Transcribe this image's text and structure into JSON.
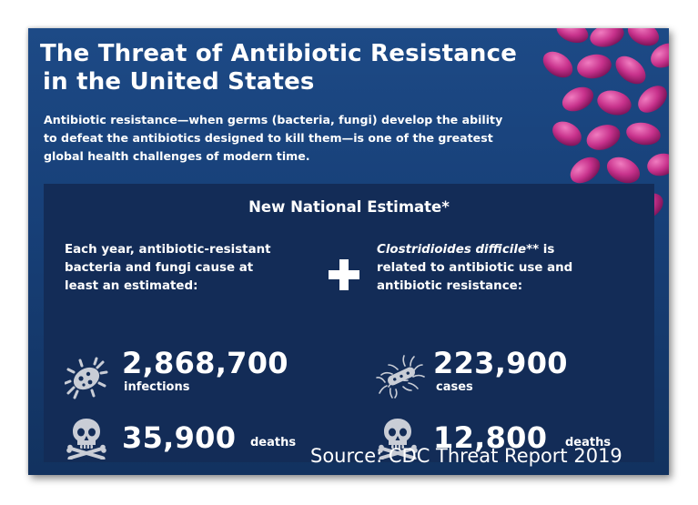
{
  "title_line1": "The Threat of Antibiotic Resistance",
  "title_line2": "in the United States",
  "intro_line1": "Antibiotic resistance—when germs (bacteria, fungi) develop the ability",
  "intro_line2": "to defeat the antibiotics designed to kill them—is one of the greatest",
  "intro_line3": "global health challenges of modern time.",
  "panel": {
    "title": "New National Estimate*",
    "left": {
      "lead_line1": "Each year, antibiotic-resistant",
      "lead_line2": "bacteria and fungi cause at",
      "lead_line3": "least an estimated:",
      "stat1_value": "2,868,700",
      "stat1_unit": "infections",
      "stat2_value": "35,900",
      "stat2_unit": "deaths"
    },
    "right": {
      "lead_species": "Clostridioides difficile",
      "lead_suffix": "** is",
      "lead_line2": "related to antibiotic use and",
      "lead_line3": "antibiotic resistance:",
      "stat1_value": "223,900",
      "stat1_unit": "cases",
      "stat2_value": "12,800",
      "stat2_unit": "deaths"
    }
  },
  "source": "Source: CDC Threat Report 2019",
  "icons": {
    "germ": "germ-icon",
    "bacteria": "c-diff-bacteria-icon",
    "skull": "skull-crossbones-icon",
    "plus": "plus-icon"
  },
  "colors": {
    "background": "#173f77",
    "panel": "#132c57",
    "pill": "#c8328c",
    "icon": "#c9cdd6",
    "text": "#ffffff"
  }
}
